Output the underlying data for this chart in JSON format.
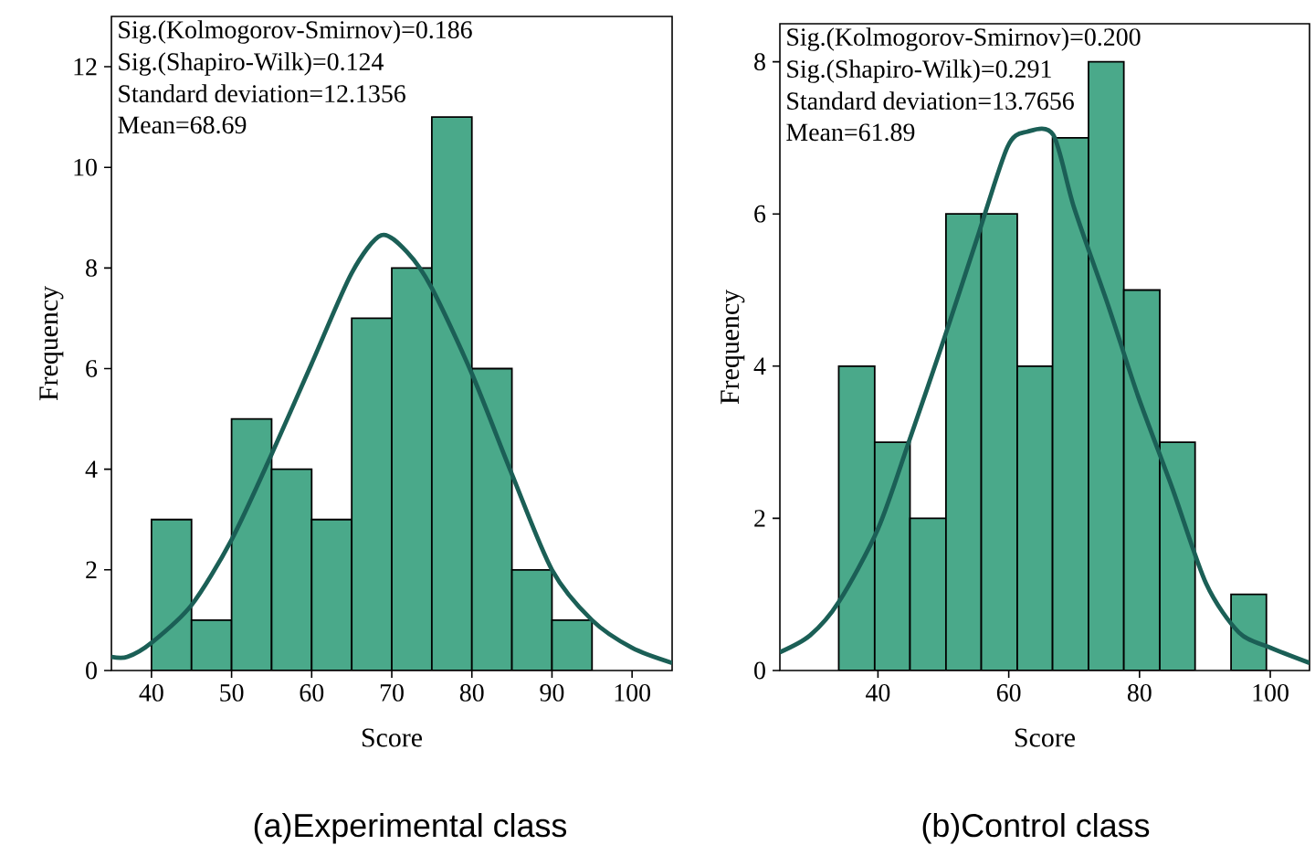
{
  "chart_data": [
    {
      "type": "histogram",
      "title": "(a)Experimental class",
      "xlabel": "Score",
      "ylabel": "Frequency",
      "annotations": [
        "Sig.(Kolmogorov-Smirnov)=0.186",
        "Sig.(Shapiro-Wilk)=0.124",
        "Standard deviation=12.1356",
        "Mean=68.69"
      ],
      "xlim": [
        35,
        105
      ],
      "xticks": [
        40,
        50,
        60,
        70,
        80,
        90,
        100
      ],
      "ylim": [
        0,
        13
      ],
      "yticks": [
        0,
        2,
        4,
        6,
        8,
        10,
        12
      ],
      "series": [
        {
          "color": "#4aa98a",
          "bins": [
            40,
            45,
            50,
            55,
            60,
            65,
            70,
            75,
            80,
            85,
            90,
            95
          ],
          "values": [
            3,
            1,
            5,
            4,
            3,
            7,
            8,
            11,
            6,
            2,
            1
          ]
        },
        {
          "type": "line",
          "color": "#1b5f56",
          "x": [
            35,
            37,
            40,
            45,
            50,
            55,
            60,
            65,
            68.7,
            72,
            75,
            80,
            85,
            90,
            95,
            100,
            105
          ],
          "values": [
            0.27,
            0.27,
            0.55,
            1.3,
            2.6,
            4.3,
            6.1,
            7.9,
            8.65,
            8.3,
            7.6,
            5.9,
            3.9,
            2.0,
            1.0,
            0.45,
            0.15
          ]
        }
      ]
    },
    {
      "type": "histogram",
      "title": "(b)Control class",
      "xlabel": "Score",
      "ylabel": "Frequency",
      "annotations": [
        "Sig.(Kolmogorov-Smirnov)=0.200",
        "Sig.(Shapiro-Wilk)=0.291",
        "Standard deviation=13.7656",
        "Mean=61.89"
      ],
      "xlim": [
        25,
        106
      ],
      "xticks": [
        40,
        60,
        80,
        100
      ],
      "ylim": [
        0,
        8.5
      ],
      "yticks": [
        0,
        2,
        4,
        6,
        8
      ],
      "series": [
        {
          "color": "#4aa98a",
          "bins": [
            34.0,
            39.5,
            44.9,
            50.4,
            55.8,
            61.3,
            66.7,
            72.2,
            77.6,
            83.1,
            88.5,
            94.0,
            99.4
          ],
          "values": [
            4,
            3,
            2,
            6,
            6,
            4,
            7,
            8,
            5,
            3,
            0,
            1
          ]
        },
        {
          "type": "line",
          "color": "#1b5f56",
          "x": [
            25,
            29.6,
            34,
            40,
            44.9,
            50,
            55.2,
            59.8,
            62.8,
            66.8,
            70,
            75.2,
            79.8,
            85,
            90.2,
            95.2,
            100,
            106
          ],
          "values": [
            0.24,
            0.46,
            0.9,
            1.86,
            3.05,
            4.33,
            5.69,
            6.88,
            7.08,
            7.04,
            6.08,
            4.8,
            3.6,
            2.4,
            1.14,
            0.5,
            0.3,
            0.1
          ]
        }
      ]
    }
  ]
}
